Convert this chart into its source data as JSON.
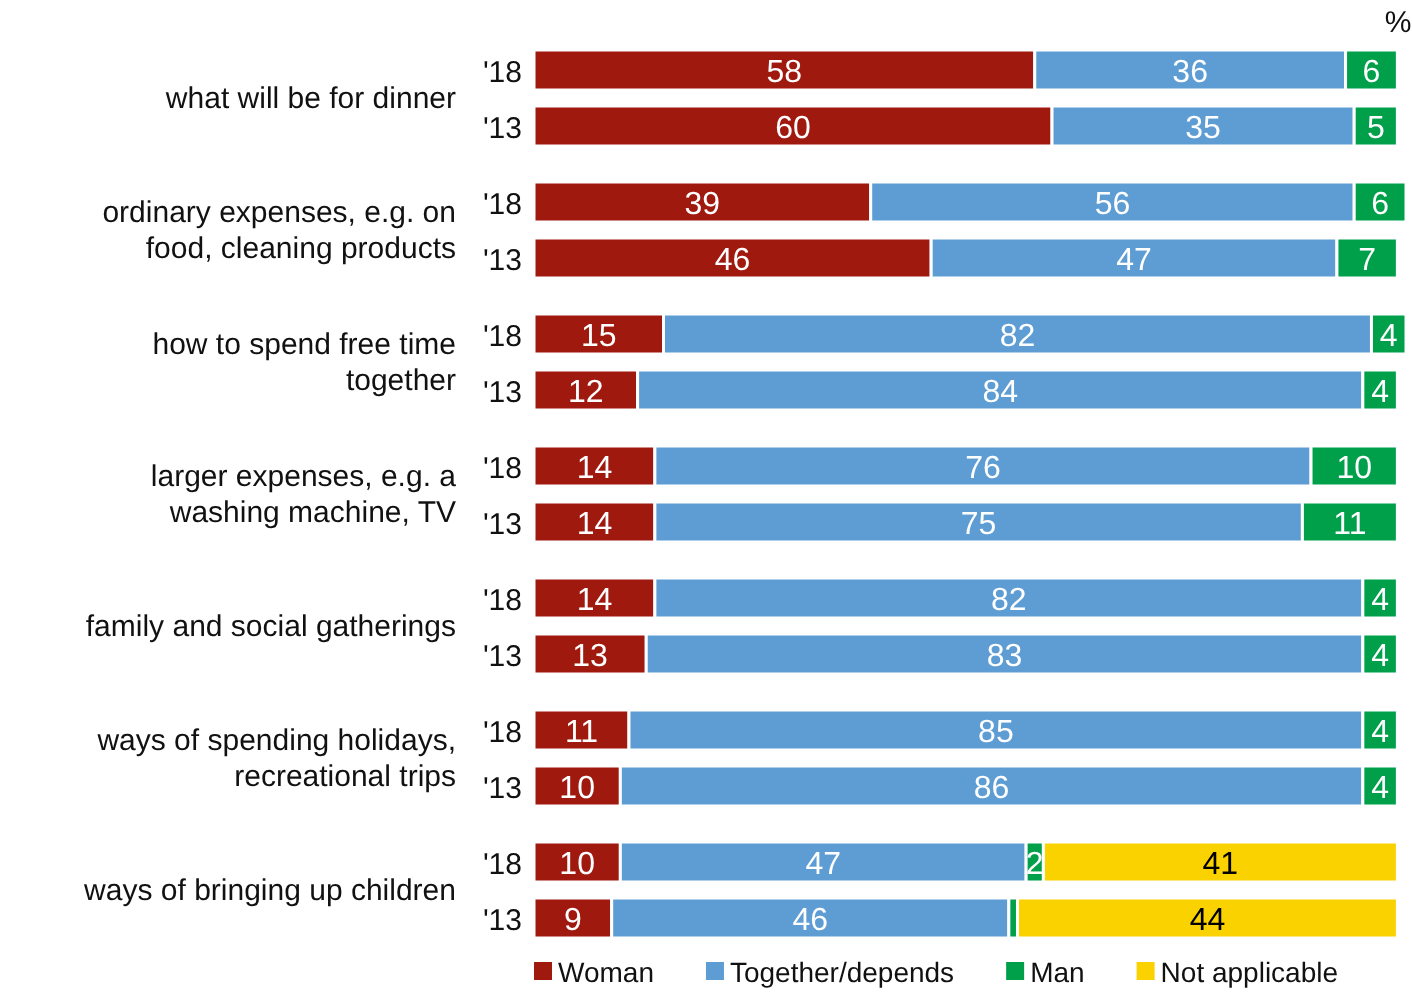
{
  "chart_data": {
    "type": "bar",
    "orientation": "horizontal",
    "stacked": true,
    "xlim": [
      0,
      101
    ],
    "tick_labels": "y",
    "categories": [
      "'18",
      "'13",
      "'18",
      "'13",
      "'18",
      "'13",
      "'18",
      "'13",
      "'18",
      "'13",
      "'18",
      "'13",
      "'18",
      "'13"
    ],
    "series": [
      {
        "name": "Woman",
        "color": "#a0190f",
        "values": [
          58,
          60,
          39,
          46,
          15,
          12,
          14,
          14,
          14,
          13,
          11,
          10,
          10,
          9
        ],
        "value_labels": [
          "58",
          "60",
          "39",
          "46",
          "15",
          "12",
          "14",
          "14",
          "14",
          "13",
          "11",
          "10",
          "10",
          "9"
        ]
      },
      {
        "name": "Together/depends",
        "color": "#5e9dd3",
        "values": [
          36,
          35,
          56,
          47,
          82,
          84,
          76,
          75,
          82,
          83,
          85,
          86,
          47,
          46
        ],
        "value_labels": [
          "36",
          "35",
          "56",
          "47",
          "82",
          "84",
          "76",
          "75",
          "82",
          "83",
          "85",
          "86",
          "47",
          "46"
        ]
      },
      {
        "name": "Man",
        "color": "#00a04b",
        "values": [
          6,
          5,
          6,
          7,
          4,
          4,
          10,
          11,
          4,
          4,
          4,
          4,
          2,
          1
        ],
        "value_labels": [
          "6",
          "5",
          "6",
          "7",
          "4",
          "4",
          "10",
          "11",
          "4",
          "4",
          "4",
          "4",
          "2",
          null
        ]
      },
      {
        "name": "Not applicable",
        "color": "#fad200",
        "values": [
          null,
          null,
          null,
          null,
          null,
          null,
          null,
          null,
          null,
          null,
          null,
          null,
          41,
          44
        ],
        "value_labels": [
          null,
          null,
          null,
          null,
          null,
          null,
          null,
          null,
          null,
          null,
          null,
          null,
          "41",
          "44"
        ]
      }
    ],
    "annotations": [
      "what will be for dinner",
      "ordinary expenses, e.g. on food, cleaning products",
      "how to spend free time together",
      "larger expenses, e.g. a washing machine, TV",
      "family and social gatherings",
      "ways of spending holidays, recreational trips",
      "ways of bringing up children",
      "%"
    ],
    "legend": "bottom"
  }
}
